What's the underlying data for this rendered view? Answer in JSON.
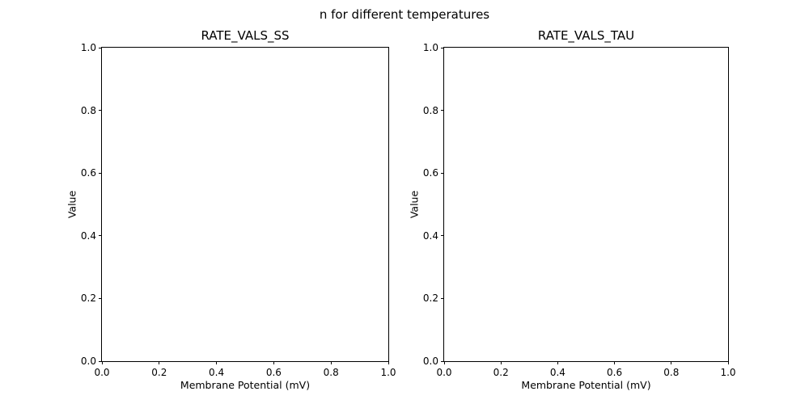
{
  "figure": {
    "suptitle": "n for different temperatures",
    "background_color": "#ffffff",
    "text_color": "#000000"
  },
  "chart_data": [
    {
      "type": "line",
      "title": "RATE_VALS_SS",
      "xlabel": "Membrane Potential (mV)",
      "ylabel": "Value",
      "xlim": [
        0.0,
        1.0
      ],
      "ylim": [
        0.0,
        1.0
      ],
      "xticks": [
        "0.0",
        "0.2",
        "0.4",
        "0.6",
        "0.8",
        "1.0"
      ],
      "yticks": [
        "0.0",
        "0.2",
        "0.4",
        "0.6",
        "0.8",
        "1.0"
      ],
      "grid": false,
      "series": []
    },
    {
      "type": "line",
      "title": "RATE_VALS_TAU",
      "xlabel": "Membrane Potential (mV)",
      "ylabel": "Value",
      "xlim": [
        0.0,
        1.0
      ],
      "ylim": [
        0.0,
        1.0
      ],
      "xticks": [
        "0.0",
        "0.2",
        "0.4",
        "0.6",
        "0.8",
        "1.0"
      ],
      "yticks": [
        "0.0",
        "0.2",
        "0.4",
        "0.6",
        "0.8",
        "1.0"
      ],
      "grid": false,
      "series": []
    }
  ]
}
